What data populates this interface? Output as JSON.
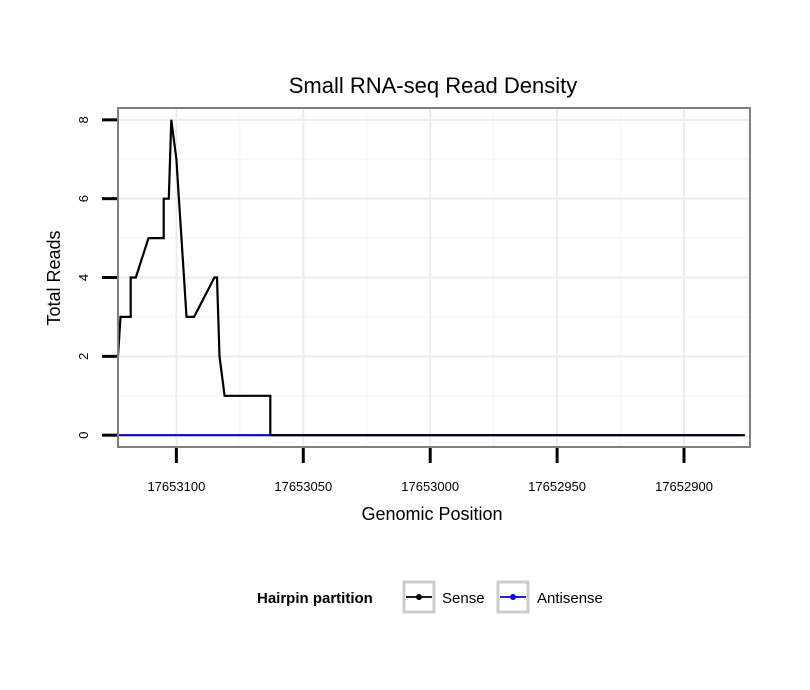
{
  "chart_data": {
    "type": "line",
    "title": "Small RNA-seq Read Density",
    "xlabel": "Genomic Position",
    "ylabel": "Total Reads",
    "xlim": [
      17653123,
      17652874
    ],
    "x_reversed": true,
    "ylim": [
      -0.3,
      8.3
    ],
    "xticks": [
      {
        "value": 17653100,
        "label": "17653100"
      },
      {
        "value": 17653050,
        "label": "17653050"
      },
      {
        "value": 17653000,
        "label": "17653000"
      },
      {
        "value": 17652950,
        "label": "17652950"
      },
      {
        "value": 17652900,
        "label": "17652900"
      }
    ],
    "yticks": [
      {
        "value": 0,
        "label": "0"
      },
      {
        "value": 2,
        "label": "2"
      },
      {
        "value": 4,
        "label": "4"
      },
      {
        "value": 6,
        "label": "6"
      },
      {
        "value": 8,
        "label": "8"
      }
    ],
    "grid": true,
    "legend": {
      "title": "Hairpin partition",
      "position": "bottom"
    },
    "series": [
      {
        "name": "Sense",
        "color": "#000000",
        "x": [
          17653123,
          17653122,
          17653122,
          17653118,
          17653118,
          17653116,
          17653116,
          17653111,
          17653111,
          17653105,
          17653105,
          17653103,
          17653103,
          17653102,
          17653102,
          17653100,
          17653100,
          17653099,
          17653099,
          17653097,
          17653097,
          17653096,
          17653096,
          17653093,
          17653093,
          17653085,
          17653085,
          17653084,
          17653084,
          17653083,
          17653083,
          17653081,
          17653081,
          17653063,
          17653063,
          17652876,
          17652876,
          17652881,
          17652881,
          17652897,
          17652897,
          17652899,
          17652899,
          17652876
        ],
        "y": [
          2,
          3,
          3,
          3,
          4,
          4,
          4,
          5,
          5,
          5,
          6,
          6,
          6,
          8,
          8,
          7,
          7,
          6,
          6,
          4,
          4,
          3,
          3,
          3,
          3,
          4,
          4,
          4,
          4,
          2,
          2,
          1,
          1,
          1,
          0,
          0,
          0,
          0,
          0,
          0,
          0,
          0,
          0,
          0
        ]
      },
      {
        "name": "Antisense",
        "color": "#0000ff",
        "x": [
          17653123,
          17652878
        ],
        "y": [
          0,
          0
        ]
      }
    ]
  }
}
